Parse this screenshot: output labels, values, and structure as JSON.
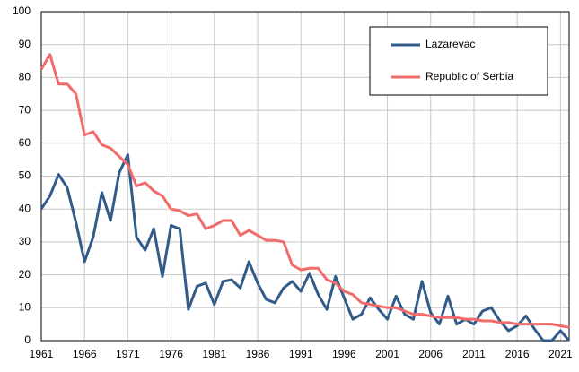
{
  "chart_data": {
    "type": "line",
    "x": [
      1961,
      1962,
      1963,
      1964,
      1965,
      1966,
      1967,
      1968,
      1969,
      1970,
      1971,
      1972,
      1973,
      1974,
      1975,
      1976,
      1977,
      1978,
      1979,
      1980,
      1981,
      1982,
      1983,
      1984,
      1985,
      1986,
      1987,
      1988,
      1989,
      1990,
      1991,
      1992,
      1993,
      1994,
      1995,
      1996,
      1997,
      1998,
      1999,
      2000,
      2001,
      2002,
      2003,
      2004,
      2005,
      2006,
      2007,
      2008,
      2009,
      2010,
      2011,
      2012,
      2013,
      2014,
      2015,
      2016,
      2017,
      2018,
      2019,
      2020,
      2021,
      2022
    ],
    "series": [
      {
        "name": "Lazarevac",
        "color": "#335b8a",
        "values": [
          40,
          44,
          50.5,
          46.5,
          36,
          24,
          31.5,
          45,
          36.5,
          51,
          56.5,
          31.5,
          27.5,
          34,
          19.5,
          35,
          34,
          9.5,
          16.5,
          17.5,
          11,
          18,
          18.5,
          16,
          24,
          17.5,
          12.5,
          11.5,
          16,
          18,
          15,
          20.5,
          14,
          9.5,
          19.5,
          13,
          6.5,
          8,
          13,
          9.5,
          6.5,
          13.5,
          8,
          6.5,
          18,
          8.5,
          5,
          13.5,
          5,
          6.5,
          5,
          9,
          10,
          6,
          3,
          4.5,
          7.5,
          3.5,
          0,
          0,
          3,
          0
        ]
      },
      {
        "name": "Republic of Serbia",
        "color": "#f26b6b",
        "values": [
          82.5,
          87,
          78,
          78,
          75,
          62.5,
          63.5,
          59.5,
          58.5,
          56,
          53.5,
          47,
          48,
          45.5,
          44,
          40,
          39.5,
          38,
          38.5,
          34,
          35,
          36.5,
          36.5,
          32,
          33.5,
          32,
          30.5,
          30.5,
          30,
          23,
          21.5,
          22,
          22,
          18.5,
          17.5,
          15,
          14,
          11.5,
          11,
          10.5,
          10,
          10,
          9,
          8,
          8,
          7.5,
          7,
          7,
          7,
          6.5,
          6.5,
          6,
          6,
          5.5,
          5.5,
          5,
          5,
          5,
          5,
          5,
          4.5,
          4
        ]
      }
    ],
    "xlim": [
      1961,
      2022
    ],
    "xticks": [
      1961,
      1966,
      1971,
      1976,
      1981,
      1986,
      1991,
      1996,
      2001,
      2006,
      2011,
      2016,
      2021
    ],
    "ylim": [
      0,
      100
    ],
    "yticks": [
      0,
      10,
      20,
      30,
      40,
      50,
      60,
      70,
      80,
      90,
      100
    ],
    "grid": true,
    "legend": "upper right"
  }
}
